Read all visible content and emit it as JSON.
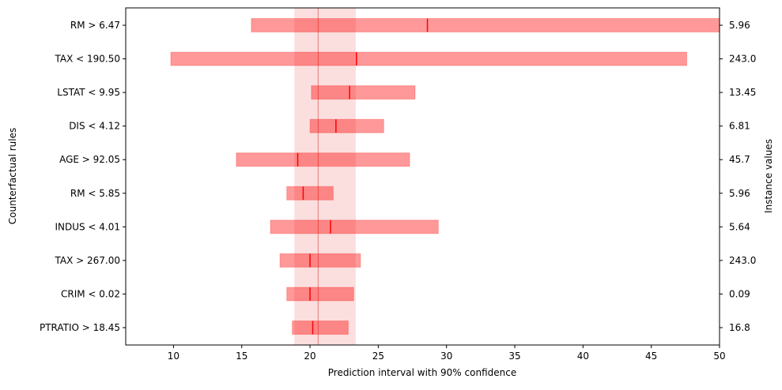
{
  "chart_data": {
    "type": "interval",
    "xlabel": "Prediction interval with 90% confidence",
    "ylabel_left": "Counterfactual rules",
    "ylabel_right": "Instance values",
    "xlim": [
      6.5,
      50
    ],
    "xticks": [
      10,
      15,
      20,
      25,
      30,
      35,
      40,
      45,
      50
    ],
    "base_prediction": 20.6,
    "base_interval": [
      18.85,
      23.35
    ],
    "colors": {
      "bar_fill": "#ff0000",
      "bar_opacity": 0.4,
      "median_line": "#ff0000",
      "band_fill": "#f08080",
      "band_opacity": 0.25
    },
    "rules": [
      {
        "label": "RM > 6.47",
        "instance_value": "5.96",
        "low": 15.7,
        "high": 50.0,
        "median": 28.6
      },
      {
        "label": "TAX < 190.50",
        "instance_value": "243.0",
        "low": 9.8,
        "high": 47.6,
        "median": 23.4
      },
      {
        "label": "LSTAT < 9.95",
        "instance_value": "13.45",
        "low": 20.1,
        "high": 27.7,
        "median": 22.9
      },
      {
        "label": "DIS < 4.12",
        "instance_value": "6.81",
        "low": 20.0,
        "high": 25.4,
        "median": 21.9
      },
      {
        "label": "AGE > 92.05",
        "instance_value": "45.7",
        "low": 14.6,
        "high": 27.3,
        "median": 19.1
      },
      {
        "label": "RM < 5.85",
        "instance_value": "5.96",
        "low": 18.3,
        "high": 21.7,
        "median": 19.5
      },
      {
        "label": "INDUS < 4.01",
        "instance_value": "5.64",
        "low": 17.1,
        "high": 29.4,
        "median": 21.5
      },
      {
        "label": "TAX > 267.00",
        "instance_value": "243.0",
        "low": 17.8,
        "high": 23.7,
        "median": 20.0
      },
      {
        "label": "CRIM < 0.02",
        "instance_value": "0.09",
        "low": 18.3,
        "high": 23.2,
        "median": 20.0
      },
      {
        "label": "PTRATIO > 18.45",
        "instance_value": "16.8",
        "low": 18.7,
        "high": 22.8,
        "median": 20.2
      }
    ]
  }
}
